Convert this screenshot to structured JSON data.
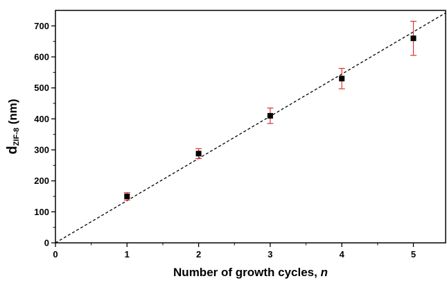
{
  "chart_data": {
    "type": "scatter",
    "xlabel_main": "Number of growth cycles, ",
    "xlabel_var": "n",
    "ylabel_main": "d",
    "ylabel_sub": "ZIF-8",
    "ylabel_unit": " (nm)",
    "xlim": [
      0,
      5.45
    ],
    "ylim": [
      0,
      750
    ],
    "xticks": [
      0,
      1,
      2,
      3,
      4,
      5
    ],
    "yticks": [
      0,
      100,
      200,
      300,
      400,
      500,
      600,
      700
    ],
    "grid": false,
    "series": [
      {
        "points": [
          {
            "x": 1,
            "y": 150,
            "err": 12
          },
          {
            "x": 2,
            "y": 288,
            "err": 16
          },
          {
            "x": 3,
            "y": 410,
            "err": 25
          },
          {
            "x": 4,
            "y": 530,
            "err": 33
          },
          {
            "x": 5,
            "y": 660,
            "err": 55
          }
        ],
        "marker_color": "#000000",
        "errorbar_color": "#e03030"
      }
    ],
    "fit_line": {
      "style": "dashed",
      "color": "#000000",
      "x": [
        0,
        5.45
      ],
      "y": [
        0,
        742
      ]
    }
  }
}
